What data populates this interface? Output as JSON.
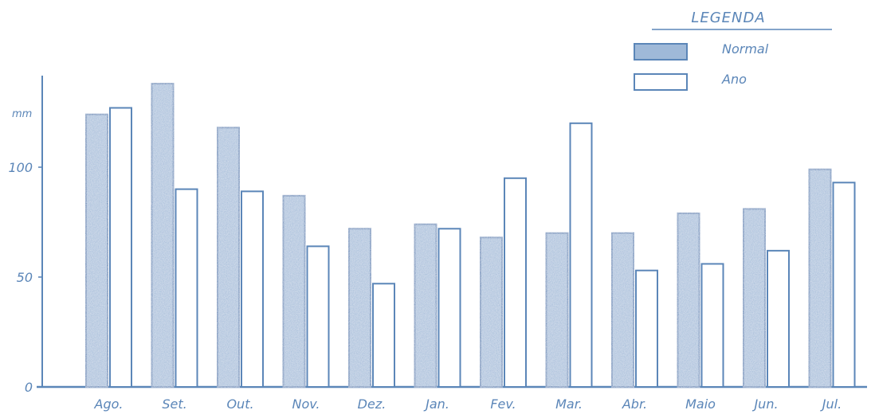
{
  "chart_data": {
    "type": "bar",
    "title": "",
    "xlabel": "",
    "ylabel": "",
    "y_unit_label": "mm",
    "categories": [
      "Ago.",
      "Set.",
      "Out.",
      "Nov.",
      "Dez.",
      "Jan.",
      "Fev.",
      "Mar.",
      "Abr.",
      "Maio",
      "Jun.",
      "Jul."
    ],
    "series": [
      {
        "name": "Normal",
        "values": [
          124,
          138,
          118,
          87,
          72,
          74,
          68,
          70,
          70,
          79,
          81,
          99
        ]
      },
      {
        "name": "Ano",
        "values": [
          127,
          90,
          89,
          64,
          47,
          72,
          95,
          120,
          53,
          56,
          62,
          93
        ]
      }
    ],
    "ylim": [
      0,
      140
    ],
    "yticks": [
      0,
      50,
      100
    ],
    "ytick_labels": [
      "0",
      "50",
      "100"
    ],
    "grid": false,
    "legend": {
      "title": "LEGENDA",
      "placement": "top-right",
      "entries": [
        "Normal",
        "Ano"
      ]
    },
    "colors": {
      "ink": "#5b86b8",
      "normal_fill": "#9fb9d8",
      "ano_fill": "#ffffff",
      "background": "#ffffff"
    }
  }
}
